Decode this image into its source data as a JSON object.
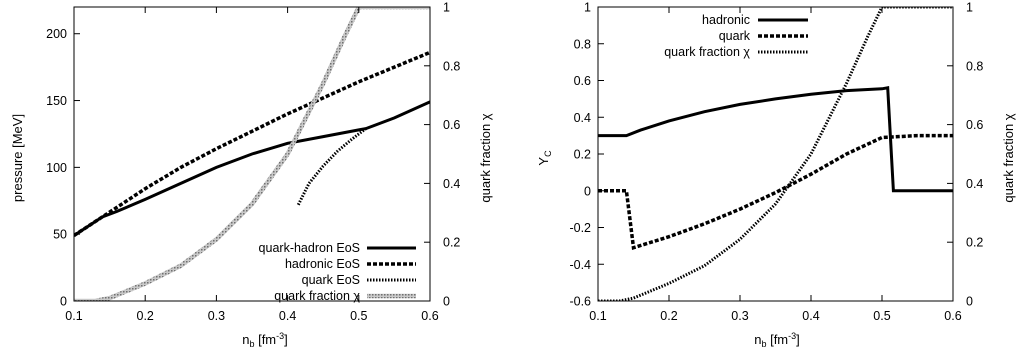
{
  "chart_data": [
    {
      "type": "line",
      "title": "",
      "xlabel": "n_b [fm^-3]",
      "xlabel_main": "n",
      "xlabel_sub": "b",
      "xlabel_unit_pre": " [fm",
      "xlabel_unit_sup": "-3",
      "xlabel_unit_post": "]",
      "ylabel": "pressure [MeV]",
      "y2label": "quark fraction χ",
      "xlim": [
        0.1,
        0.6
      ],
      "ylim": [
        0,
        220
      ],
      "y2lim": [
        0,
        1
      ],
      "xticks": [
        "0.1",
        "0.2",
        "0.3",
        "0.4",
        "0.5",
        "0.6"
      ],
      "yticks": [
        "0",
        "50",
        "100",
        "150",
        "200"
      ],
      "y2ticks": [
        "0",
        "0.2",
        "0.4",
        "0.6",
        "0.8",
        "1"
      ],
      "grid": false,
      "legend_position": "bottom-right",
      "series": [
        {
          "name": "quark-hadron EoS",
          "axis": "left",
          "style": "solid",
          "x": [
            0.1,
            0.12,
            0.14,
            0.16,
            0.2,
            0.25,
            0.3,
            0.35,
            0.4,
            0.45,
            0.5,
            0.51,
            0.55,
            0.6
          ],
          "y": [
            49,
            56,
            63,
            67,
            76,
            88,
            100,
            110,
            118,
            123,
            128,
            129,
            137,
            149
          ]
        },
        {
          "name": "hadronic EoS",
          "axis": "left",
          "style": "dashed",
          "x": [
            0.1,
            0.12,
            0.14,
            0.16,
            0.2,
            0.25,
            0.3,
            0.35,
            0.4,
            0.45,
            0.5,
            0.55,
            0.6
          ],
          "y": [
            49,
            56,
            63,
            70,
            84,
            100,
            114,
            127,
            140,
            152,
            164,
            175,
            186
          ]
        },
        {
          "name": "quark EoS",
          "axis": "left",
          "style": "dotted",
          "x": [
            0.415,
            0.43,
            0.45,
            0.47,
            0.49,
            0.51
          ],
          "y": [
            72,
            88,
            101,
            112,
            121,
            129
          ]
        },
        {
          "name": "quark fraction χ",
          "axis": "right",
          "style": "hatched",
          "x": [
            0.1,
            0.13,
            0.15,
            0.2,
            0.25,
            0.3,
            0.35,
            0.4,
            0.45,
            0.48,
            0.5,
            0.51,
            0.55,
            0.6
          ],
          "y": [
            0,
            0,
            0.01,
            0.06,
            0.12,
            0.21,
            0.33,
            0.5,
            0.74,
            0.9,
            1,
            1,
            1,
            1
          ]
        }
      ]
    },
    {
      "type": "line",
      "title": "",
      "xlabel": "n_b [fm^-3]",
      "xlabel_main": "n",
      "xlabel_sub": "b",
      "xlabel_unit_pre": " [fm",
      "xlabel_unit_sup": "-3",
      "xlabel_unit_post": "]",
      "ylabel": "Y_C",
      "ylabel_main": "Y",
      "ylabel_sub": "C",
      "y2label": "quark fraction χ",
      "xlim": [
        0.1,
        0.6
      ],
      "ylim": [
        -0.6,
        1
      ],
      "y2lim": [
        0,
        1
      ],
      "xticks": [
        "0.1",
        "0.2",
        "0.3",
        "0.4",
        "0.5",
        "0.6"
      ],
      "yticks": [
        "-0.6",
        "-0.4",
        "-0.2",
        "0",
        "0.2",
        "0.4",
        "0.6",
        "0.8",
        "1"
      ],
      "y2ticks": [
        "0",
        "0.2",
        "0.4",
        "0.6",
        "0.8",
        "1"
      ],
      "grid": false,
      "legend_position": "top-left",
      "series": [
        {
          "name": "hadronic",
          "axis": "left",
          "style": "solid",
          "x": [
            0.1,
            0.14,
            0.16,
            0.2,
            0.25,
            0.3,
            0.35,
            0.4,
            0.45,
            0.5,
            0.508,
            0.516,
            0.55,
            0.6
          ],
          "y": [
            0.3,
            0.3,
            0.33,
            0.38,
            0.43,
            0.47,
            0.5,
            0.525,
            0.545,
            0.555,
            0.56,
            0.0,
            0.0,
            0.0
          ]
        },
        {
          "name": "quark",
          "axis": "left",
          "style": "dashed",
          "x": [
            0.1,
            0.14,
            0.15,
            0.2,
            0.25,
            0.3,
            0.35,
            0.4,
            0.45,
            0.5,
            0.55,
            0.6
          ],
          "y": [
            0.0,
            0.0,
            -0.31,
            -0.25,
            -0.18,
            -0.1,
            -0.01,
            0.09,
            0.2,
            0.29,
            0.3,
            0.3
          ]
        },
        {
          "name": "quark fraction χ",
          "axis": "right",
          "style": "dotted",
          "x": [
            0.1,
            0.13,
            0.15,
            0.2,
            0.25,
            0.3,
            0.35,
            0.4,
            0.45,
            0.48,
            0.5,
            0.51,
            0.55,
            0.6
          ],
          "y": [
            0,
            0,
            0.01,
            0.06,
            0.12,
            0.21,
            0.33,
            0.5,
            0.74,
            0.9,
            1,
            1,
            1,
            1
          ]
        }
      ]
    }
  ],
  "legend_left": [
    "quark-hadron EoS",
    "hadronic EoS",
    "quark EoS",
    "quark fraction χ"
  ],
  "legend_right": [
    "hadronic",
    "quark",
    "quark fraction χ"
  ]
}
